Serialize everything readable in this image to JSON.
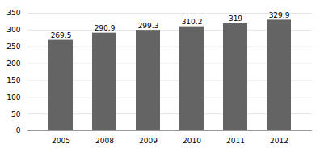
{
  "chart_data": {
    "type": "bar",
    "categories": [
      "2005",
      "2008",
      "2009",
      "2010",
      "2011",
      "2012"
    ],
    "values": [
      269.5,
      290.9,
      299.3,
      310.2,
      319,
      329.9
    ],
    "color": "#646464",
    "ylim": [
      0,
      350
    ],
    "yticks": [
      0,
      50,
      100,
      150,
      200,
      250,
      300,
      350
    ],
    "grid": true,
    "data_labels": true
  }
}
